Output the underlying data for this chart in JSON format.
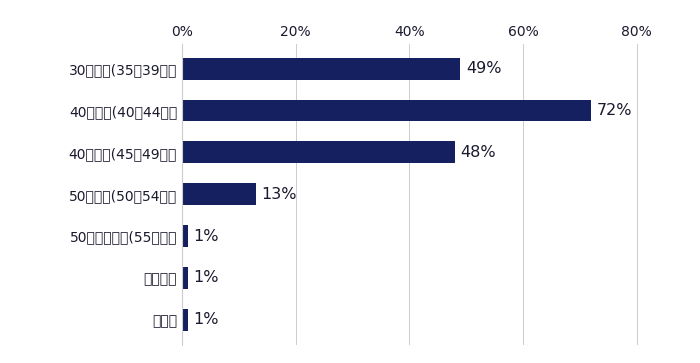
{
  "categories": [
    "30代後半(35～39歳）",
    "40代前半(40～44歳）",
    "40代後半(45～49歳）",
    "50代前半(50～54歳）",
    "50代後半以降(55歳～）",
    "年齢不問",
    "その他"
  ],
  "values": [
    49,
    72,
    48,
    13,
    1,
    1,
    1
  ],
  "bar_color": "#152060",
  "value_color": "#1a1a2e",
  "ytick_color": "#1a1a2e",
  "xtick_color": "#1a1a2e",
  "background_color": "#ffffff",
  "grid_color": "#cccccc",
  "xlim": [
    0,
    85
  ],
  "xticks": [
    0,
    20,
    40,
    60,
    80
  ],
  "xticklabels": [
    "0%",
    "20%",
    "40%",
    "60%",
    "80%"
  ],
  "bar_height": 0.52,
  "label_fontsize": 11.5,
  "tick_fontsize": 11.5,
  "value_fontsize": 11.5
}
